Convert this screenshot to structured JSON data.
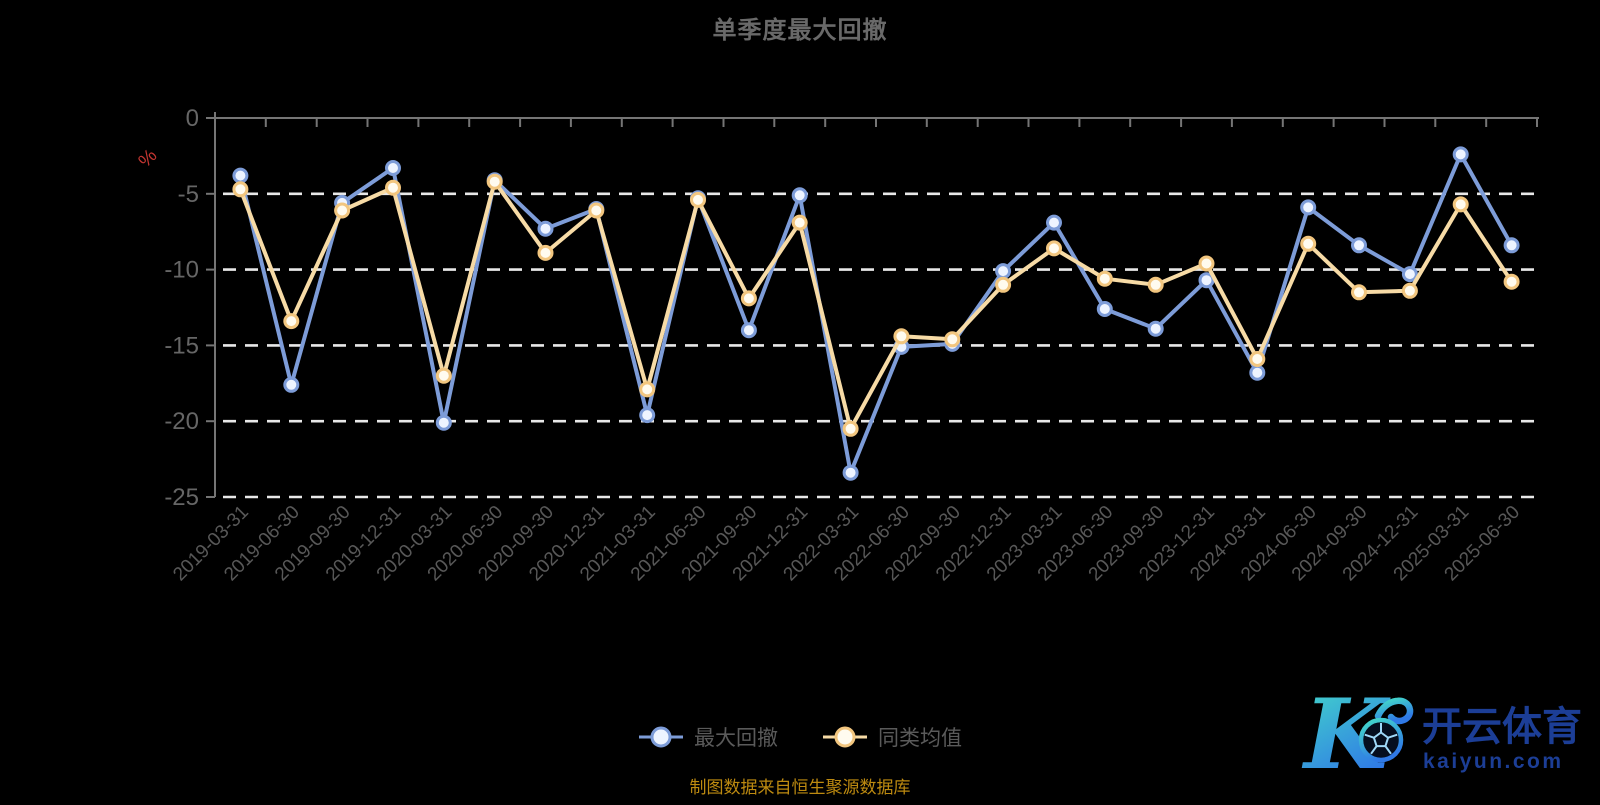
{
  "chart_data": {
    "type": "line",
    "title": "单季度最大回撤",
    "xlabel": "",
    "ylabel": "%",
    "ylim": [
      -25,
      0
    ],
    "yticks": [
      0,
      -5,
      -10,
      -15,
      -20,
      -25
    ],
    "grid": "horizontal white dashed lines, solid axis at 0",
    "legend_position": "bottom",
    "categories": [
      "2019-03-31",
      "2019-06-30",
      "2019-09-30",
      "2019-12-31",
      "2020-03-31",
      "2020-06-30",
      "2020-09-30",
      "2020-12-31",
      "2021-03-31",
      "2021-06-30",
      "2021-09-30",
      "2021-12-31",
      "2022-03-31",
      "2022-06-30",
      "2022-09-30",
      "2022-12-31",
      "2023-03-31",
      "2023-06-30",
      "2023-09-30",
      "2023-12-31",
      "2024-03-31",
      "2024-06-30",
      "2024-09-30",
      "2024-12-31",
      "2025-03-31",
      "2025-06-30"
    ],
    "series": [
      {
        "name": "最大回撤",
        "color": "#7d9cd8",
        "marker_stroke": "#7d9cd8",
        "marker_fill": "#eef4ff",
        "values": [
          -3.8,
          -17.6,
          -5.6,
          -3.3,
          -20.1,
          -4.1,
          -7.3,
          -6.0,
          -19.6,
          -5.3,
          -14.0,
          -5.1,
          -23.4,
          -15.1,
          -14.9,
          -10.1,
          -6.9,
          -12.6,
          -13.9,
          -10.7,
          -16.8,
          -5.9,
          -8.4,
          -10.3,
          -2.4,
          -8.4
        ]
      },
      {
        "name": "同类均值",
        "color": "#f7dba6",
        "marker_stroke": "#f2c67f",
        "marker_fill": "#fffbef",
        "values": [
          -4.7,
          -13.4,
          -6.1,
          -4.6,
          -17.0,
          -4.2,
          -8.9,
          -6.1,
          -17.9,
          -5.4,
          -11.9,
          -6.9,
          -20.5,
          -14.4,
          -14.6,
          -11.0,
          -8.6,
          -10.6,
          -11.0,
          -9.6,
          -15.9,
          -8.3,
          -11.5,
          -11.4,
          -5.7,
          -10.8
        ]
      }
    ]
  },
  "footer": {
    "text": "制图数据来自恒生聚源数据库"
  },
  "watermark": {
    "logo_letter": "K",
    "brand": "开云体育",
    "domain": "kaiyun.com"
  },
  "colors": {
    "background": "#000000",
    "title": "#696969",
    "axis_line": "#757575",
    "grid": "#e8e8e8",
    "y_label": "#666666",
    "x_label": "#585858",
    "legend_label": "#5a5a5a",
    "footer": "#bd8a10",
    "ylabel_percent": "#c23531",
    "watermark_text": "#1c3e96",
    "watermark_gradient_start": "#44dcc8",
    "watermark_gradient_end": "#2f79e6"
  }
}
